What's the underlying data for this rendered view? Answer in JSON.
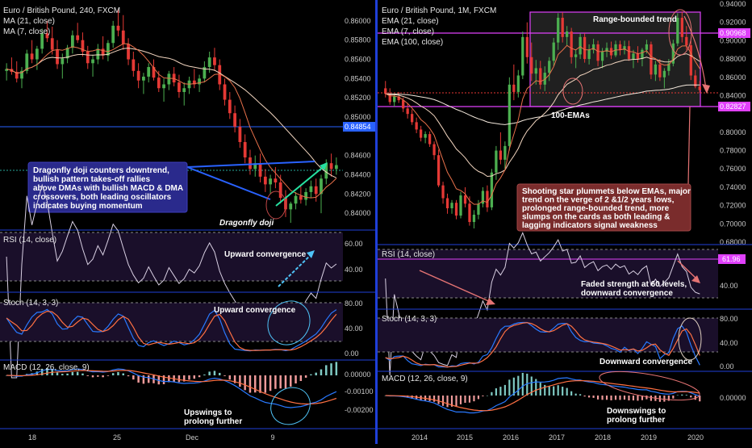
{
  "colors": {
    "background": "#000000",
    "up": "#4caf50",
    "down": "#e53935",
    "axis_text": "#c9c9c9",
    "separator": "#1f3fd8",
    "hline_blue": "#2962ff",
    "hline_green": "#26a69a",
    "magenta": "#e040fb",
    "panel_fill": "#1a0f2a",
    "ma_light": "#f3d6c0",
    "ma_orange": "#e8704a",
    "rsi_line": "#d9d0e3",
    "macd_blue": "#2979ff",
    "macd_orange": "#ff7043",
    "callout_left": "#2a2a8c",
    "callout_right": "#7a2c2c",
    "arrow_cyan": "#4fc3f7"
  },
  "left": {
    "title": "Euro / British Pound, 240, FXCM",
    "legend": [
      "MA (21, close)",
      "MA (7, close)"
    ],
    "price_ticks": [
      "0.86000",
      "0.85800",
      "0.85600",
      "0.85400",
      "0.85200",
      "0.85000",
      "0.84600",
      "0.84400",
      "0.84200",
      "0.84000"
    ],
    "price_badge": "0.84854",
    "callout": "Dragonfly doji counters downtrend, bullish pattern takes-off rallies above DMAs with bullish MACD & DMA crossovers, both leading oscillators indicates buying momentum",
    "doji_label": "Dragonfly doji",
    "rsi_title": "RSI (14, close)",
    "rsi_ticks": [
      "60.00",
      "40.00"
    ],
    "rsi_note": "Upward convergence",
    "stoch_title": "Stoch (14, 3, 3)",
    "stoch_ticks": [
      "80.00",
      "40.00",
      "0.00"
    ],
    "stoch_note": "Upward convergence",
    "macd_title": "MACD (12, 26, close, 9)",
    "macd_ticks": [
      "0.00000",
      "-0.00100",
      "-0.00200"
    ],
    "macd_note": "Upswings to prolong further",
    "x_ticks": [
      "18",
      "25",
      "Dec",
      "9"
    ]
  },
  "right": {
    "title": "Euro / British Pound, 1M, FXCM",
    "legend": [
      "EMA (21, close)",
      "EMA (7, close)",
      "EMA (100, close)"
    ],
    "price_ticks": [
      "0.94000",
      "0.92000",
      "0.90000",
      "0.88000",
      "0.86000",
      "0.84000",
      "0.80000",
      "0.78000",
      "0.76000",
      "0.74000",
      "0.72000",
      "0.70000",
      "0.68000"
    ],
    "badge_top": "0.90968",
    "badge_bottom": "0.82827",
    "range_label": "Range-bounded trend",
    "ema_label": "100-EMAs",
    "callout": "Shooting star plummets below EMAs, major trend on the verge of 2 &1/2 years lows, prolonged range-bounded trend, more slumps on the cards as both leading & lagging indicators signal weakness",
    "rsi_title": "RSI (14, close)",
    "rsi_ticks": [
      "40.00"
    ],
    "rsi_badge": "61.96",
    "rsi_note": "Faded strength at 60 levels, downward convergence",
    "stoch_title": "Stoch (14, 3, 3)",
    "stoch_ticks": [
      "80.00",
      "40.00",
      "0.00"
    ],
    "stoch_note": "Downward convergence",
    "macd_title": "MACD (12, 26, close, 9)",
    "macd_ticks": [
      "0.00000"
    ],
    "macd_note": "Downswings to prolong further",
    "x_ticks": [
      "2014",
      "2015",
      "2016",
      "2017",
      "2018",
      "2019",
      "2020"
    ]
  },
  "chart_data": [
    {
      "type": "candlestick",
      "title": "Euro / British Pound, 240, FXCM",
      "ylim": [
        0.8385,
        0.8615
      ],
      "overlays": [
        "MA (21, close)",
        "MA (7, close)"
      ],
      "candles": [
        [
          0.8548,
          0.8556,
          0.8538,
          0.855
        ],
        [
          0.855,
          0.8562,
          0.8544,
          0.8547
        ],
        [
          0.8547,
          0.8558,
          0.8536,
          0.854
        ],
        [
          0.854,
          0.8552,
          0.853,
          0.8548
        ],
        [
          0.8548,
          0.857,
          0.8545,
          0.8566
        ],
        [
          0.8566,
          0.858,
          0.8556,
          0.856
        ],
        [
          0.856,
          0.8574,
          0.8549,
          0.8571
        ],
        [
          0.8571,
          0.8592,
          0.8566,
          0.8587
        ],
        [
          0.8587,
          0.86,
          0.8578,
          0.8582
        ],
        [
          0.8582,
          0.8594,
          0.8565,
          0.857
        ],
        [
          0.857,
          0.858,
          0.855,
          0.8555
        ],
        [
          0.8555,
          0.8566,
          0.854,
          0.8561
        ],
        [
          0.8561,
          0.8575,
          0.8556,
          0.8572
        ],
        [
          0.8572,
          0.859,
          0.8566,
          0.8585
        ],
        [
          0.8585,
          0.8598,
          0.8577,
          0.858
        ],
        [
          0.858,
          0.8588,
          0.8563,
          0.8568
        ],
        [
          0.8568,
          0.8574,
          0.855,
          0.8556
        ],
        [
          0.8556,
          0.8565,
          0.8542,
          0.856
        ],
        [
          0.856,
          0.8576,
          0.8555,
          0.8571
        ],
        [
          0.8571,
          0.8584,
          0.856,
          0.8564
        ],
        [
          0.8564,
          0.858,
          0.8558,
          0.8577
        ],
        [
          0.8577,
          0.86,
          0.8572,
          0.8595
        ],
        [
          0.8595,
          0.8612,
          0.8584,
          0.859
        ],
        [
          0.859,
          0.8606,
          0.857,
          0.8576
        ],
        [
          0.8576,
          0.8582,
          0.8554,
          0.856
        ],
        [
          0.856,
          0.8568,
          0.8542,
          0.8548
        ],
        [
          0.8548,
          0.8556,
          0.853,
          0.8538
        ],
        [
          0.8538,
          0.8546,
          0.8524,
          0.8542
        ],
        [
          0.8542,
          0.8556,
          0.8536,
          0.8552
        ],
        [
          0.8552,
          0.856,
          0.8538,
          0.8541
        ],
        [
          0.8541,
          0.8548,
          0.8526,
          0.853
        ],
        [
          0.853,
          0.854,
          0.8516,
          0.8534
        ],
        [
          0.8534,
          0.8548,
          0.8528,
          0.8545
        ],
        [
          0.8545,
          0.8552,
          0.8532,
          0.8536
        ],
        [
          0.8536,
          0.8544,
          0.852,
          0.8526
        ],
        [
          0.8526,
          0.8536,
          0.8512,
          0.853
        ],
        [
          0.853,
          0.8542,
          0.8524,
          0.8538
        ],
        [
          0.8538,
          0.855,
          0.853,
          0.8534
        ],
        [
          0.8534,
          0.8544,
          0.8526,
          0.854
        ],
        [
          0.854,
          0.8558,
          0.8536,
          0.8552
        ],
        [
          0.8552,
          0.8568,
          0.8546,
          0.8562
        ],
        [
          0.8562,
          0.8572,
          0.8548,
          0.8554
        ],
        [
          0.8554,
          0.856,
          0.8528,
          0.8534
        ],
        [
          0.8534,
          0.854,
          0.8512,
          0.8518
        ],
        [
          0.8518,
          0.8526,
          0.8498,
          0.8504
        ],
        [
          0.8504,
          0.8512,
          0.8484,
          0.849
        ],
        [
          0.849,
          0.8498,
          0.8468,
          0.8474
        ],
        [
          0.8474,
          0.8482,
          0.8452,
          0.8458
        ],
        [
          0.8458,
          0.8466,
          0.844,
          0.8446
        ],
        [
          0.8446,
          0.846,
          0.8438,
          0.8452
        ],
        [
          0.8452,
          0.8462,
          0.8432,
          0.8438
        ],
        [
          0.8438,
          0.8446,
          0.8422,
          0.843
        ],
        [
          0.843,
          0.844,
          0.842,
          0.8436
        ],
        [
          0.8436,
          0.8448,
          0.8426,
          0.8432
        ],
        [
          0.8432,
          0.844,
          0.841,
          0.8416
        ],
        [
          0.8416,
          0.8424,
          0.8396,
          0.8404
        ],
        [
          0.8404,
          0.8412,
          0.839,
          0.841
        ],
        [
          0.841,
          0.8422,
          0.8404,
          0.8418
        ],
        [
          0.8418,
          0.8428,
          0.841,
          0.8414
        ],
        [
          0.8414,
          0.8426,
          0.8408,
          0.8422
        ],
        [
          0.8422,
          0.8434,
          0.8416,
          0.8428
        ],
        [
          0.8428,
          0.8436,
          0.8412,
          0.842
        ],
        [
          0.842,
          0.844,
          0.84,
          0.8436
        ],
        [
          0.8436,
          0.8456,
          0.843,
          0.8452
        ],
        [
          0.8452,
          0.8462,
          0.8438,
          0.8446
        ],
        [
          0.8446,
          0.8458,
          0.844,
          0.845
        ]
      ]
    },
    {
      "type": "candlestick",
      "title": "Euro / British Pound, 1M, FXCM",
      "ylim": [
        0.68,
        0.94
      ],
      "overlays": [
        "EMA (21, close)",
        "EMA (7, close)",
        "EMA (100, close)"
      ],
      "candles": [
        [
          0.848,
          0.856,
          0.838,
          0.842
        ],
        [
          0.842,
          0.848,
          0.83,
          0.833
        ],
        [
          0.833,
          0.842,
          0.828,
          0.839
        ],
        [
          0.839,
          0.844,
          0.832,
          0.835
        ],
        [
          0.835,
          0.838,
          0.822,
          0.826
        ],
        [
          0.826,
          0.832,
          0.815,
          0.82
        ],
        [
          0.82,
          0.825,
          0.808,
          0.811
        ],
        [
          0.811,
          0.816,
          0.799,
          0.803
        ],
        [
          0.803,
          0.807,
          0.79,
          0.794
        ],
        [
          0.794,
          0.801,
          0.788,
          0.798
        ],
        [
          0.798,
          0.801,
          0.784,
          0.787
        ],
        [
          0.787,
          0.79,
          0.77,
          0.775
        ],
        [
          0.775,
          0.781,
          0.74,
          0.742
        ],
        [
          0.742,
          0.746,
          0.722,
          0.728
        ],
        [
          0.728,
          0.733,
          0.711,
          0.717
        ],
        [
          0.717,
          0.726,
          0.711,
          0.723
        ],
        [
          0.723,
          0.726,
          0.705,
          0.709
        ],
        [
          0.709,
          0.735,
          0.706,
          0.731
        ],
        [
          0.731,
          0.74,
          0.718,
          0.722
        ],
        [
          0.722,
          0.73,
          0.698,
          0.702
        ],
        [
          0.702,
          0.715,
          0.695,
          0.71
        ],
        [
          0.71,
          0.726,
          0.705,
          0.722
        ],
        [
          0.722,
          0.74,
          0.718,
          0.736
        ],
        [
          0.736,
          0.742,
          0.713,
          0.718
        ],
        [
          0.718,
          0.76,
          0.715,
          0.756
        ],
        [
          0.756,
          0.785,
          0.748,
          0.78
        ],
        [
          0.78,
          0.8,
          0.765,
          0.77
        ],
        [
          0.77,
          0.79,
          0.76,
          0.785
        ],
        [
          0.785,
          0.86,
          0.78,
          0.852
        ],
        [
          0.852,
          0.874,
          0.835,
          0.844
        ],
        [
          0.844,
          0.868,
          0.838,
          0.862
        ],
        [
          0.862,
          0.91,
          0.858,
          0.904
        ],
        [
          0.904,
          0.92,
          0.875,
          0.882
        ],
        [
          0.882,
          0.898,
          0.856,
          0.864
        ],
        [
          0.864,
          0.879,
          0.852,
          0.87
        ],
        [
          0.87,
          0.878,
          0.847,
          0.852
        ],
        [
          0.852,
          0.872,
          0.845,
          0.865
        ],
        [
          0.865,
          0.882,
          0.856,
          0.878
        ],
        [
          0.878,
          0.903,
          0.872,
          0.898
        ],
        [
          0.898,
          0.93,
          0.89,
          0.925
        ],
        [
          0.925,
          0.931,
          0.898,
          0.904
        ],
        [
          0.904,
          0.916,
          0.895,
          0.91
        ],
        [
          0.91,
          0.914,
          0.875,
          0.882
        ],
        [
          0.882,
          0.89,
          0.87,
          0.885
        ],
        [
          0.885,
          0.908,
          0.88,
          0.904
        ],
        [
          0.904,
          0.908,
          0.876,
          0.88
        ],
        [
          0.88,
          0.896,
          0.874,
          0.89
        ],
        [
          0.89,
          0.902,
          0.886,
          0.896
        ],
        [
          0.896,
          0.9,
          0.872,
          0.878
        ],
        [
          0.878,
          0.892,
          0.87,
          0.888
        ],
        [
          0.888,
          0.898,
          0.882,
          0.892
        ],
        [
          0.892,
          0.899,
          0.88,
          0.884
        ],
        [
          0.884,
          0.9,
          0.882,
          0.896
        ],
        [
          0.896,
          0.9,
          0.884,
          0.89
        ],
        [
          0.89,
          0.9,
          0.885,
          0.894
        ],
        [
          0.894,
          0.9,
          0.878,
          0.88
        ],
        [
          0.88,
          0.89,
          0.87,
          0.886
        ],
        [
          0.886,
          0.894,
          0.876,
          0.88
        ],
        [
          0.88,
          0.892,
          0.872,
          0.89
        ],
        [
          0.89,
          0.901,
          0.886,
          0.896
        ],
        [
          0.896,
          0.899,
          0.858,
          0.863
        ],
        [
          0.863,
          0.878,
          0.856,
          0.874
        ],
        [
          0.874,
          0.88,
          0.856,
          0.86
        ],
        [
          0.86,
          0.87,
          0.848,
          0.867
        ],
        [
          0.867,
          0.88,
          0.862,
          0.875
        ],
        [
          0.875,
          0.901,
          0.872,
          0.897
        ],
        [
          0.897,
          0.93,
          0.894,
          0.925
        ],
        [
          0.925,
          0.932,
          0.898,
          0.904
        ],
        [
          0.904,
          0.916,
          0.89,
          0.895
        ],
        [
          0.895,
          0.9,
          0.857,
          0.862
        ],
        [
          0.862,
          0.868,
          0.848,
          0.85
        ],
        [
          0.85,
          0.856,
          0.843,
          0.846
        ]
      ]
    }
  ]
}
